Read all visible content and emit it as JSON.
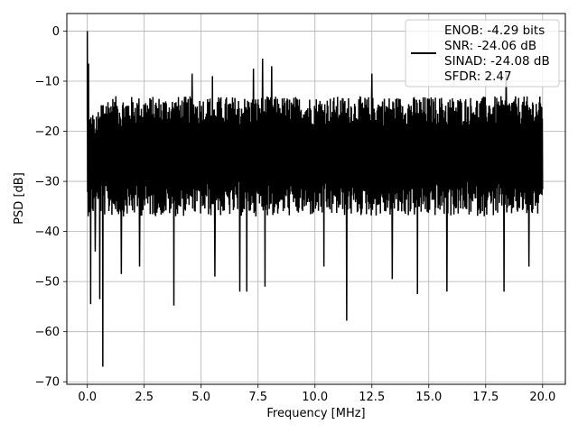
{
  "chart_data": {
    "type": "line",
    "title": "",
    "xlabel": "Frequency [MHz]",
    "ylabel": "PSD [dB]",
    "xlim": [
      -0.9,
      21.0
    ],
    "ylim": [
      -70.5,
      3.5
    ],
    "grid": true,
    "x_ticks": [
      0.0,
      2.5,
      5.0,
      7.5,
      10.0,
      12.5,
      15.0,
      17.5,
      20.0
    ],
    "x_tick_labels": [
      "0.0",
      "2.5",
      "5.0",
      "7.5",
      "10.0",
      "12.5",
      "15.0",
      "17.5",
      "20.0"
    ],
    "y_ticks": [
      0,
      -10,
      -20,
      -30,
      -40,
      -50,
      -60,
      -70
    ],
    "y_tick_labels": [
      "0",
      "−10",
      "−20",
      "−30",
      "−40",
      "−50",
      "−60",
      "−70"
    ],
    "legend": {
      "placement": "upper right",
      "entries": [
        "ENOB: -4.29 bits",
        "SNR: -24.06 dB",
        "SINAD: -24.08 dB",
        "SFDR: 2.47"
      ]
    },
    "series": [
      {
        "color": "#000000",
        "x_range_mhz": [
          0.0,
          20.0
        ],
        "envelope": {
          "typical_upper_db": -12,
          "typical_lower_db": -37,
          "dc_peak": {
            "x": 0.0,
            "y": 0.0
          }
        },
        "peaks": [
          {
            "x": 0.0,
            "y": 0.0
          },
          {
            "x": 0.05,
            "y": -6.5
          },
          {
            "x": 2.3,
            "y": -10.5
          },
          {
            "x": 4.6,
            "y": -8.5
          },
          {
            "x": 5.5,
            "y": -9.0
          },
          {
            "x": 7.3,
            "y": -7.5
          },
          {
            "x": 7.7,
            "y": -5.5
          },
          {
            "x": 8.1,
            "y": -7.0
          },
          {
            "x": 12.5,
            "y": -8.5
          },
          {
            "x": 18.4,
            "y": -8.5
          }
        ],
        "dips": [
          {
            "x": 0.15,
            "y": -54.5
          },
          {
            "x": 0.35,
            "y": -44.0
          },
          {
            "x": 0.55,
            "y": -53.5
          },
          {
            "x": 0.68,
            "y": -67.0
          },
          {
            "x": 1.5,
            "y": -48.5
          },
          {
            "x": 2.3,
            "y": -47.0
          },
          {
            "x": 3.8,
            "y": -54.8
          },
          {
            "x": 5.6,
            "y": -49.0
          },
          {
            "x": 6.7,
            "y": -52.0
          },
          {
            "x": 7.0,
            "y": -52.0
          },
          {
            "x": 7.8,
            "y": -51.0
          },
          {
            "x": 10.4,
            "y": -47.0
          },
          {
            "x": 11.4,
            "y": -57.8
          },
          {
            "x": 13.4,
            "y": -49.5
          },
          {
            "x": 14.5,
            "y": -52.5
          },
          {
            "x": 15.8,
            "y": -52.0
          },
          {
            "x": 18.3,
            "y": -52.0
          },
          {
            "x": 19.4,
            "y": -47.0
          }
        ]
      }
    ]
  }
}
